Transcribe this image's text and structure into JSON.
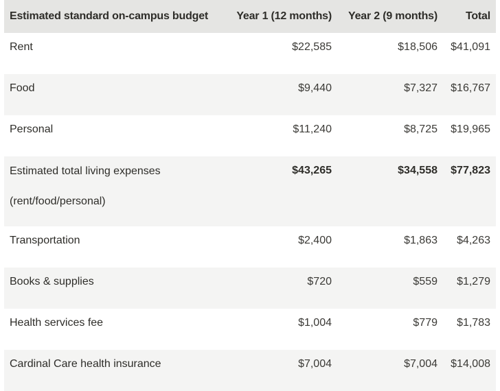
{
  "table": {
    "headers": {
      "item": "Estimated standard on-campus budget",
      "year1": "Year 1 (12 months)",
      "year2": "Year 2 (9 months)",
      "total": "Total"
    },
    "rows": [
      {
        "label": "Rent",
        "year1": "$22,585",
        "year2": "$18,506",
        "total": "$41,091"
      },
      {
        "label": "Food",
        "year1": "$9,440",
        "year2": "$7,327",
        "total": "$16,767"
      },
      {
        "label": "Personal",
        "year1": "$11,240",
        "year2": "$8,725",
        "total": "$19,965"
      },
      {
        "label": "Estimated total living expenses",
        "label_line2": "(rent/food/personal)",
        "year1": "$43,265",
        "year2": "$34,558",
        "total": "$77,823"
      },
      {
        "label": "Transportation",
        "year1": "$2,400",
        "year2": "$1,863",
        "total": "$4,263"
      },
      {
        "label": "Books & supplies",
        "year1": "$720",
        "year2": "$559",
        "total": "$1,279"
      },
      {
        "label": "Health services fee",
        "year1": "$1,004",
        "year2": "$779",
        "total": "$1,783"
      },
      {
        "label": "Cardinal Care health insurance",
        "year1": "$7,004",
        "year2": "$7,004",
        "total": "$14,008"
      }
    ]
  }
}
